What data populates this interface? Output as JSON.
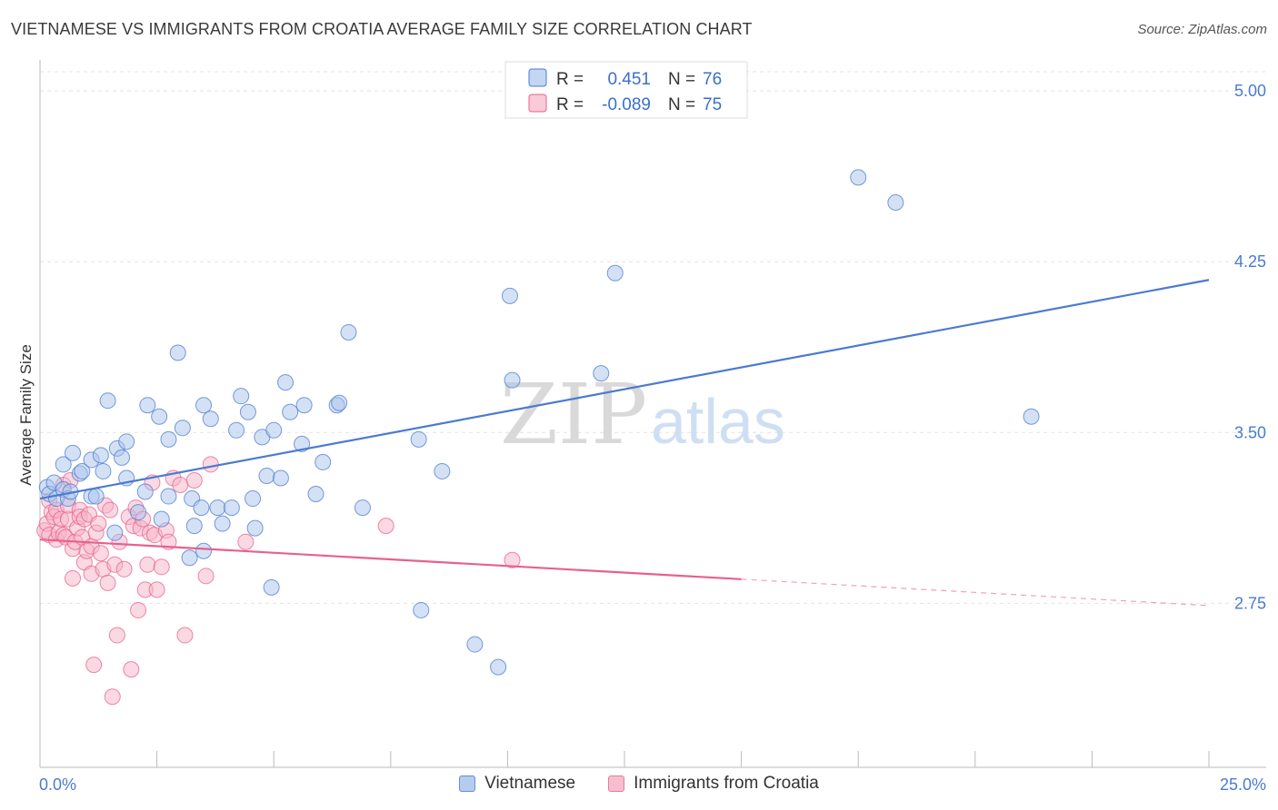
{
  "title": "VIETNAMESE VS IMMIGRANTS FROM CROATIA AVERAGE FAMILY SIZE CORRELATION CHART",
  "source": "Source: ZipAtlas.com",
  "watermark": {
    "zip": "ZIP",
    "atlas": "atlas"
  },
  "chart_data": {
    "type": "scatter",
    "ylabel": "Average Family Size",
    "xlim": [
      0,
      25
    ],
    "ylim": [
      2.03,
      5.12
    ],
    "x_tick_labels": [
      "0.0%",
      "25.0%"
    ],
    "y_ticks": [
      2.75,
      3.5,
      4.25,
      5.0
    ],
    "y_tick_labels": [
      "2.75",
      "3.50",
      "4.25",
      "5.00"
    ],
    "grid": true,
    "legend": {
      "position": "top-center",
      "entries": [
        {
          "r_label": "R =",
          "r_value": "0.451",
          "n_label": "N =",
          "n_value": "76"
        },
        {
          "r_label": "R =",
          "r_value": "-0.089",
          "n_label": "N =",
          "n_value": "75"
        }
      ]
    },
    "series": [
      {
        "name": "Vietnamese",
        "color": "#4a7bd0",
        "fill": "#a9c4ec",
        "trend": {
          "x0": 0.0,
          "y0": 3.21,
          "x1": 25.0,
          "y1": 4.17,
          "solid_until": 25.0
        },
        "points": [
          [
            0.15,
            3.26
          ],
          [
            0.2,
            3.23
          ],
          [
            0.3,
            3.28
          ],
          [
            0.35,
            3.21
          ],
          [
            0.5,
            3.25
          ],
          [
            0.5,
            3.36
          ],
          [
            0.6,
            3.21
          ],
          [
            0.65,
            3.24
          ],
          [
            0.7,
            3.41
          ],
          [
            0.85,
            3.32
          ],
          [
            0.9,
            3.33
          ],
          [
            1.1,
            3.38
          ],
          [
            1.1,
            3.22
          ],
          [
            1.2,
            3.22
          ],
          [
            1.3,
            3.4
          ],
          [
            1.35,
            3.33
          ],
          [
            1.45,
            3.64
          ],
          [
            1.6,
            3.06
          ],
          [
            1.65,
            3.43
          ],
          [
            1.75,
            3.39
          ],
          [
            1.85,
            3.46
          ],
          [
            1.85,
            3.3
          ],
          [
            2.1,
            3.15
          ],
          [
            2.25,
            3.24
          ],
          [
            2.3,
            3.62
          ],
          [
            2.55,
            3.57
          ],
          [
            2.6,
            3.12
          ],
          [
            2.75,
            3.22
          ],
          [
            2.75,
            3.47
          ],
          [
            2.95,
            3.85
          ],
          [
            3.05,
            3.52
          ],
          [
            3.2,
            2.95
          ],
          [
            3.25,
            3.21
          ],
          [
            3.3,
            3.09
          ],
          [
            3.45,
            3.17
          ],
          [
            3.5,
            2.98
          ],
          [
            3.5,
            3.62
          ],
          [
            3.65,
            3.56
          ],
          [
            3.8,
            3.17
          ],
          [
            3.9,
            3.1
          ],
          [
            4.1,
            3.17
          ],
          [
            4.2,
            3.51
          ],
          [
            4.3,
            3.66
          ],
          [
            4.45,
            3.59
          ],
          [
            4.55,
            3.21
          ],
          [
            4.6,
            3.08
          ],
          [
            4.75,
            3.48
          ],
          [
            4.85,
            3.31
          ],
          [
            4.95,
            2.82
          ],
          [
            5.0,
            3.51
          ],
          [
            5.15,
            3.3
          ],
          [
            5.25,
            3.72
          ],
          [
            5.35,
            3.59
          ],
          [
            5.6,
            3.45
          ],
          [
            5.65,
            3.62
          ],
          [
            5.9,
            3.23
          ],
          [
            6.05,
            3.37
          ],
          [
            6.35,
            3.62
          ],
          [
            6.4,
            3.63
          ],
          [
            6.6,
            3.94
          ],
          [
            6.9,
            3.17
          ],
          [
            8.1,
            3.47
          ],
          [
            8.15,
            2.72
          ],
          [
            8.6,
            3.33
          ],
          [
            9.3,
            2.57
          ],
          [
            9.8,
            2.47
          ],
          [
            10.05,
            4.1
          ],
          [
            10.1,
            3.73
          ],
          [
            12.0,
            3.76
          ],
          [
            12.3,
            4.2
          ],
          [
            17.5,
            4.62
          ],
          [
            18.3,
            4.51
          ],
          [
            21.2,
            3.57
          ]
        ]
      },
      {
        "name": "Immigrants from Croatia",
        "color": "#e8608e",
        "fill": "#f6b3c8",
        "trend": {
          "x0": 0.0,
          "y0": 3.03,
          "x1": 25.0,
          "y1": 2.74,
          "solid_until": 15.0
        },
        "points": [
          [
            0.1,
            3.07
          ],
          [
            0.15,
            3.1
          ],
          [
            0.2,
            3.2
          ],
          [
            0.2,
            3.05
          ],
          [
            0.25,
            3.15
          ],
          [
            0.3,
            3.13
          ],
          [
            0.35,
            3.16
          ],
          [
            0.35,
            3.03
          ],
          [
            0.4,
            3.06
          ],
          [
            0.45,
            3.12
          ],
          [
            0.5,
            3.05
          ],
          [
            0.5,
            3.27
          ],
          [
            0.55,
            3.04
          ],
          [
            0.6,
            3.12
          ],
          [
            0.6,
            3.18
          ],
          [
            0.65,
            3.29
          ],
          [
            0.7,
            2.99
          ],
          [
            0.7,
            2.86
          ],
          [
            0.75,
            3.02
          ],
          [
            0.8,
            3.08
          ],
          [
            0.85,
            3.16
          ],
          [
            0.85,
            3.13
          ],
          [
            0.9,
            3.04
          ],
          [
            0.95,
            3.12
          ],
          [
            0.95,
            2.93
          ],
          [
            1.0,
            2.98
          ],
          [
            1.05,
            3.14
          ],
          [
            1.1,
            3.0
          ],
          [
            1.1,
            2.88
          ],
          [
            1.15,
            2.48
          ],
          [
            1.2,
            3.06
          ],
          [
            1.25,
            3.1
          ],
          [
            1.3,
            2.97
          ],
          [
            1.35,
            2.9
          ],
          [
            1.4,
            3.18
          ],
          [
            1.45,
            2.84
          ],
          [
            1.5,
            3.16
          ],
          [
            1.55,
            2.34
          ],
          [
            1.6,
            2.92
          ],
          [
            1.65,
            2.61
          ],
          [
            1.7,
            3.02
          ],
          [
            1.8,
            2.9
          ],
          [
            1.9,
            3.13
          ],
          [
            1.95,
            2.46
          ],
          [
            2.0,
            3.09
          ],
          [
            2.05,
            3.17
          ],
          [
            2.1,
            2.72
          ],
          [
            2.15,
            3.08
          ],
          [
            2.2,
            3.12
          ],
          [
            2.25,
            2.81
          ],
          [
            2.3,
            2.92
          ],
          [
            2.35,
            3.06
          ],
          [
            2.4,
            3.28
          ],
          [
            2.45,
            3.05
          ],
          [
            2.5,
            2.81
          ],
          [
            2.6,
            2.91
          ],
          [
            2.7,
            3.07
          ],
          [
            2.75,
            3.02
          ],
          [
            2.85,
            3.3
          ],
          [
            3.0,
            3.27
          ],
          [
            3.1,
            2.61
          ],
          [
            3.3,
            3.29
          ],
          [
            3.55,
            2.87
          ],
          [
            3.65,
            3.36
          ],
          [
            4.4,
            3.02
          ],
          [
            7.4,
            3.09
          ],
          [
            10.1,
            2.94
          ]
        ]
      }
    ]
  }
}
